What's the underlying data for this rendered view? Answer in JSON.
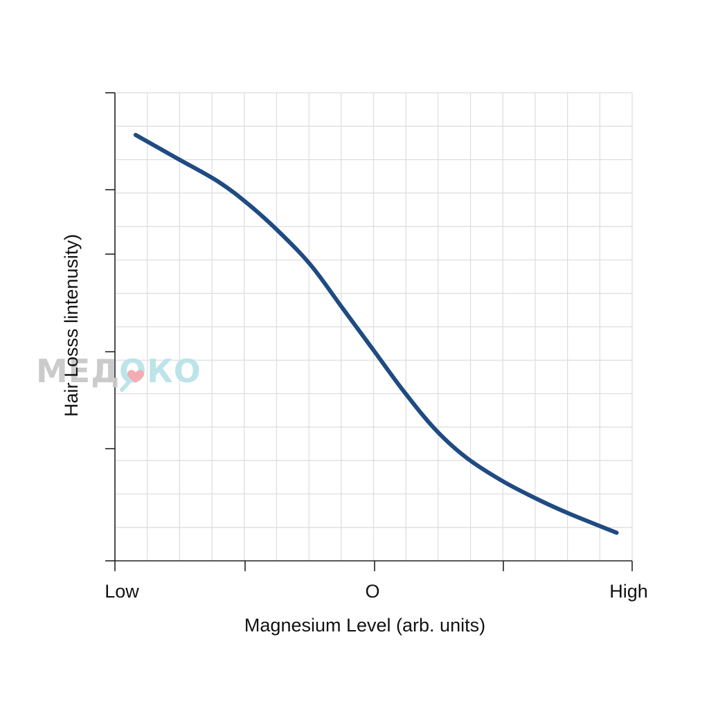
{
  "chart_data": {
    "type": "line",
    "xlabel": "Magnesium Level (arb. units)",
    "ylabel": "Hair Losss lintenusity)",
    "x_ticks": [
      "Low",
      "",
      "O",
      "",
      "High"
    ],
    "xlim": [
      0,
      1
    ],
    "ylim": [
      0,
      1
    ],
    "grid": true,
    "series": [
      {
        "color": "#1f4b82",
        "x": [
          0.04,
          0.12,
          0.2,
          0.26,
          0.32,
          0.38,
          0.44,
          0.5,
          0.56,
          0.62,
          0.68,
          0.75,
          0.82,
          0.88,
          0.97
        ],
        "y": [
          0.91,
          0.86,
          0.81,
          0.76,
          0.7,
          0.63,
          0.54,
          0.45,
          0.36,
          0.28,
          0.22,
          0.17,
          0.13,
          0.1,
          0.06
        ]
      }
    ]
  },
  "watermark": {
    "text_left": "МЕД",
    "text_right": "ОКО",
    "color_left": "#c9c9c9",
    "color_right": "#b9e3e8",
    "heart_color": "#f4a7ae"
  }
}
